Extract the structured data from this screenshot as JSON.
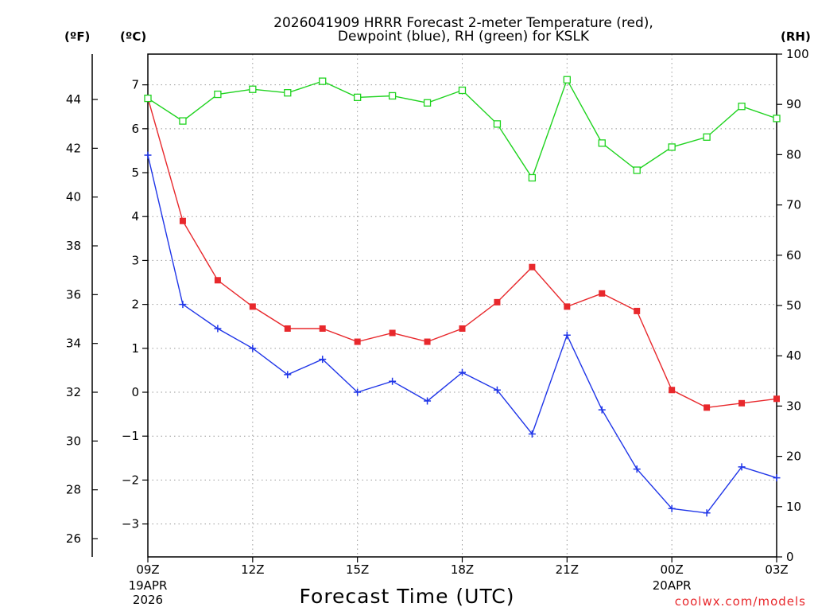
{
  "chart_data": {
    "type": "line",
    "title_lines": [
      "2026041909 HRRR Forecast 2-meter Temperature (red),",
      "Dewpoint (blue), RH (green) for KSLK"
    ],
    "xlabel": "Forecast Time (UTC)",
    "credit": "coolwx.com/models",
    "units": {
      "fahrenheit": "(ºF)",
      "celsius": "(ºC)",
      "rh": "(RH)"
    },
    "x_hours": [
      0,
      1,
      2,
      3,
      4,
      5,
      6,
      7,
      8,
      9,
      10,
      11,
      12,
      13,
      14,
      15,
      16,
      17,
      18
    ],
    "x_ticks": [
      {
        "hour": 0,
        "label": "09Z",
        "sub": [
          "19APR",
          "2026"
        ]
      },
      {
        "hour": 3,
        "label": "12Z",
        "sub": []
      },
      {
        "hour": 6,
        "label": "15Z",
        "sub": []
      },
      {
        "hour": 9,
        "label": "18Z",
        "sub": []
      },
      {
        "hour": 12,
        "label": "21Z",
        "sub": []
      },
      {
        "hour": 15,
        "label": "00Z",
        "sub": [
          "20APR"
        ]
      },
      {
        "hour": 18,
        "label": "03Z",
        "sub": []
      }
    ],
    "celsius_ticks": [
      "-3",
      "-2",
      "-1",
      "0",
      "1",
      "2",
      "3",
      "4",
      "5",
      "6",
      "7"
    ],
    "fahrenheit_ticks": [
      "26",
      "28",
      "30",
      "32",
      "34",
      "36",
      "38",
      "40",
      "42",
      "44"
    ],
    "rh_ticks": [
      "0",
      "10",
      "20",
      "30",
      "40",
      "50",
      "60",
      "70",
      "80",
      "90",
      "100"
    ],
    "ylim_celsius": [
      -3.75,
      7.7
    ],
    "ylim_rh": [
      0,
      100
    ],
    "series": [
      {
        "name": "Temperature",
        "color": "#e8282c",
        "axis": "celsius",
        "marker": "filled-square",
        "values": [
          6.7,
          3.9,
          2.55,
          1.95,
          1.45,
          1.45,
          1.15,
          1.35,
          1.15,
          1.45,
          2.05,
          2.85,
          1.95,
          2.25,
          1.85,
          0.05,
          -0.35,
          -0.25,
          -0.15
        ]
      },
      {
        "name": "Dewpoint",
        "color": "#1f35e8",
        "axis": "celsius",
        "marker": "plus",
        "values": [
          5.4,
          2.0,
          1.45,
          1.0,
          0.4,
          0.75,
          0.0,
          0.25,
          -0.2,
          0.45,
          0.05,
          -0.95,
          1.3,
          -0.4,
          -1.75,
          -2.65,
          -2.75,
          -1.7,
          -1.95
        ]
      },
      {
        "name": "RH",
        "color": "#1fd31f",
        "axis": "rh",
        "marker": "open-square",
        "values": [
          91.2,
          86.7,
          92.0,
          93.0,
          92.3,
          94.6,
          91.4,
          91.7,
          90.3,
          92.8,
          86.1,
          75.4,
          94.9,
          82.3,
          76.9,
          81.5,
          83.5,
          89.6,
          87.2
        ]
      }
    ]
  }
}
